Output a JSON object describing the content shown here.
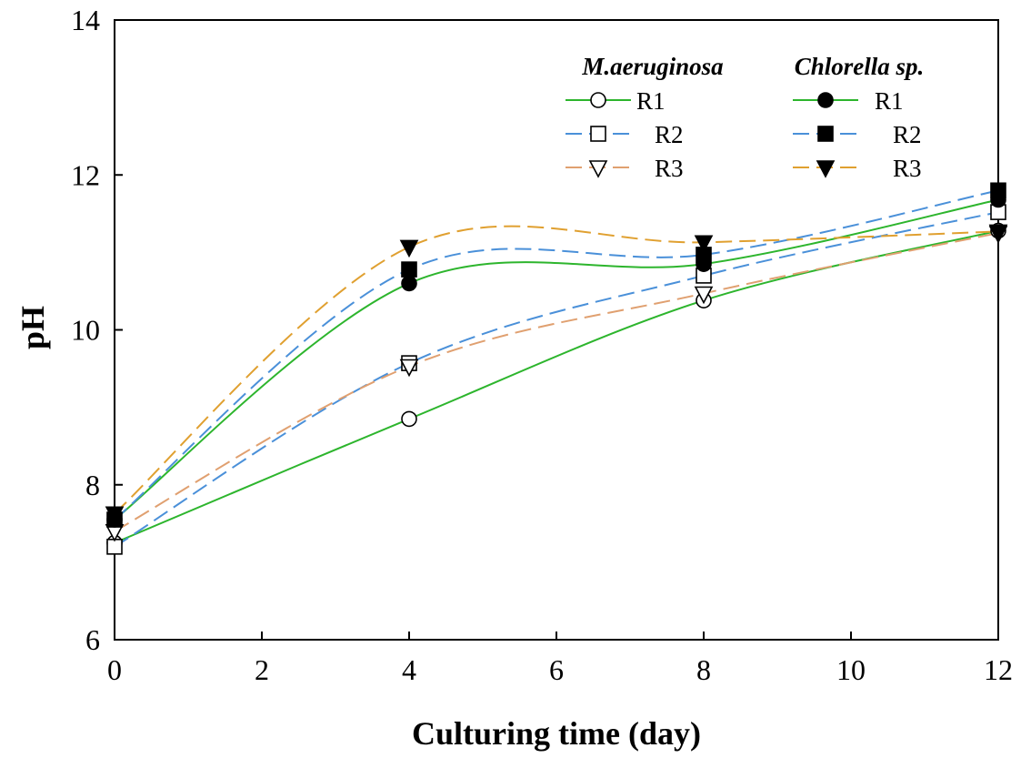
{
  "chart_data": {
    "type": "line",
    "xlabel": "Culturing time (day)",
    "ylabel": "pH",
    "xlim": [
      0,
      12
    ],
    "ylim": [
      6,
      14
    ],
    "xticks": [
      "0",
      "2",
      "4",
      "6",
      "8",
      "10",
      "12"
    ],
    "yticks": [
      "6",
      "8",
      "10",
      "12",
      "14"
    ],
    "grid": false,
    "legend_position": "top-right",
    "x": [
      0,
      4,
      8,
      12
    ],
    "groups": [
      {
        "name": "M.aeruginosa",
        "series": [
          {
            "name": "R1",
            "marker": "circle-open",
            "color": "#2db52d",
            "dash": "solid",
            "values": [
              7.25,
              8.85,
              10.38,
              11.28
            ]
          },
          {
            "name": "R2",
            "marker": "square-open",
            "color": "#4a90d9",
            "dash": "dashed",
            "values": [
              7.2,
              9.57,
              10.7,
              11.52
            ]
          },
          {
            "name": "R3",
            "marker": "triangle-down-open",
            "color": "#e0a070",
            "dash": "dashed",
            "values": [
              7.4,
              9.53,
              10.47,
              11.25
            ]
          }
        ]
      },
      {
        "name": "Chlorella sp.",
        "series": [
          {
            "name": "R1",
            "marker": "circle-filled",
            "color": "#2db52d",
            "dash": "solid",
            "values": [
              7.55,
              10.6,
              10.85,
              11.68
            ]
          },
          {
            "name": "R2",
            "marker": "square-filled",
            "color": "#4a90d9",
            "dash": "dashed",
            "values": [
              7.55,
              10.78,
              10.97,
              11.8
            ]
          },
          {
            "name": "R3",
            "marker": "triangle-down-filled",
            "color": "#e0a030",
            "dash": "dashed",
            "values": [
              7.63,
              11.07,
              11.13,
              11.27
            ]
          }
        ]
      }
    ]
  }
}
